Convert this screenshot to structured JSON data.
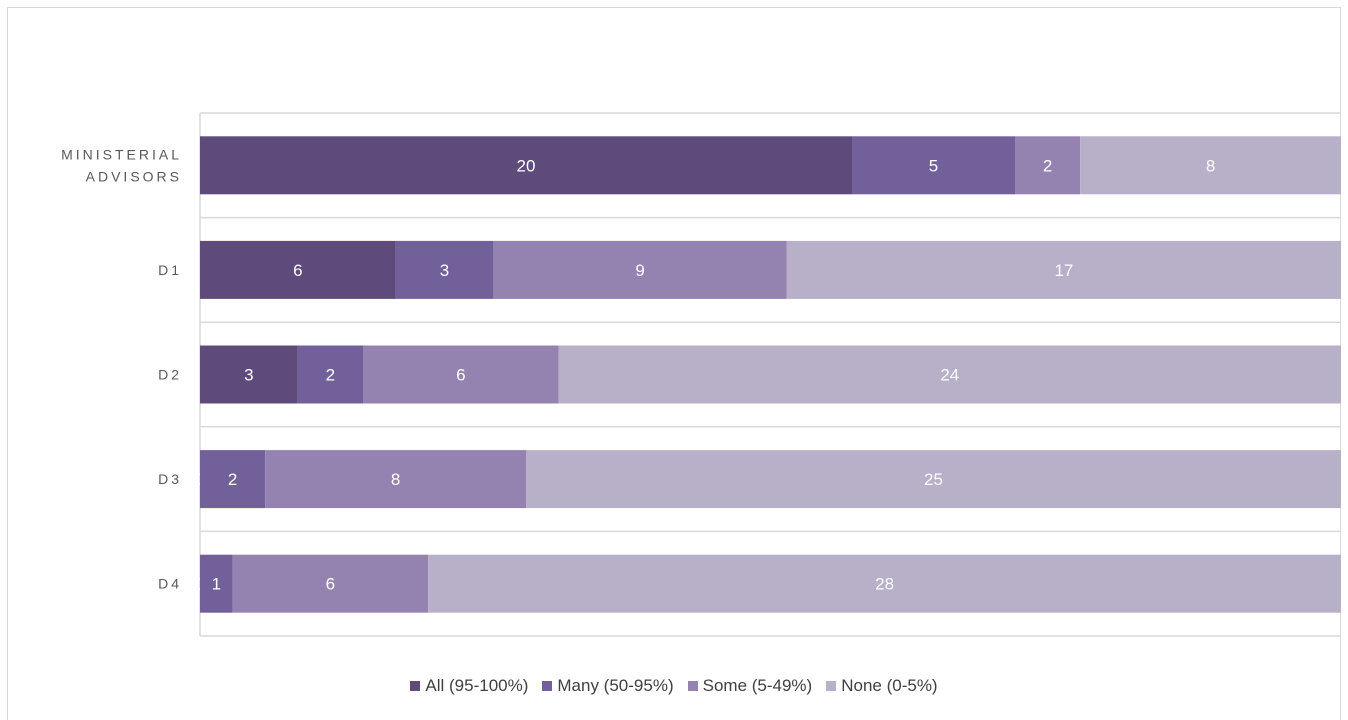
{
  "chart_data": {
    "type": "bar",
    "orientation": "horizontal",
    "stacked": true,
    "categories": [
      "MINISTERIAL ADVISORS",
      "D1",
      "D2",
      "D3",
      "D4"
    ],
    "category_lines": [
      [
        "MINISTERIAL",
        "ADVISORS"
      ],
      [
        "D1"
      ],
      [
        "D2"
      ],
      [
        "D3"
      ],
      [
        "D4"
      ]
    ],
    "series": [
      {
        "name": "All (95-100%)",
        "color": "#5e4b7c",
        "values": [
          20,
          6,
          3,
          0,
          0
        ]
      },
      {
        "name": "Many (50-95%)",
        "color": "#72609b",
        "values": [
          5,
          3,
          2,
          2,
          1
        ]
      },
      {
        "name": "Some (5-49%)",
        "color": "#9483b0",
        "values": [
          2,
          9,
          6,
          8,
          6
        ]
      },
      {
        "name": "None (0-5%)",
        "color": "#b8afc9",
        "values": [
          8,
          17,
          24,
          25,
          28
        ]
      }
    ],
    "xlim": [
      0,
      35
    ],
    "legend_position": "bottom",
    "grid": "horizontal"
  }
}
